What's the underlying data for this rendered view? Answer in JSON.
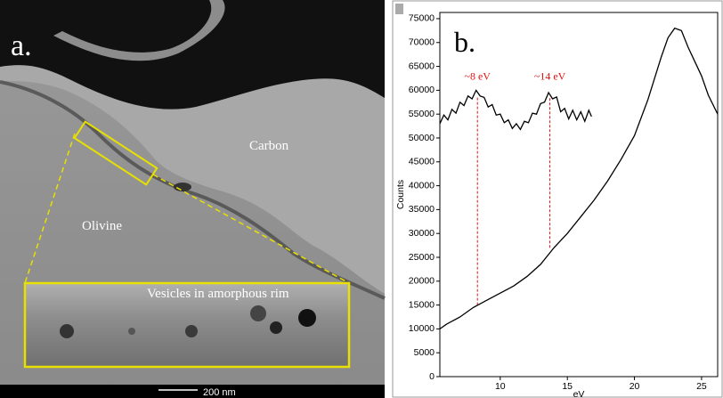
{
  "image_panel": {
    "label": "a.",
    "regions": [
      "Carbon",
      "Olivine"
    ],
    "inset_caption": "Vesicles in amorphous rim",
    "scale_bar": "200 nm"
  },
  "chart_data": {
    "type": "line",
    "panel_label": "b.",
    "x_label": "eV",
    "y_label": "Counts",
    "xlim": [
      5.5,
      26.2
    ],
    "ylim": [
      0,
      76300
    ],
    "xticks": [
      10,
      15,
      20,
      25
    ],
    "yticks": [
      0,
      5000,
      10000,
      15000,
      20000,
      25000,
      30000,
      35000,
      40000,
      45000,
      50000,
      55000,
      60000,
      65000,
      70000,
      75000
    ],
    "series": [
      {
        "color": "#000000",
        "x": [
          5.5,
          6,
          7,
          8,
          9,
          10,
          11,
          12,
          13,
          14,
          15,
          16,
          17,
          18,
          19,
          20,
          21,
          22,
          22.5,
          23,
          23.5,
          24,
          24.5,
          25,
          25.5,
          26.2
        ],
        "values": [
          10000,
          11000,
          12500,
          14500,
          16000,
          17500,
          19000,
          21000,
          23500,
          27000,
          30000,
          33500,
          37000,
          41000,
          45500,
          50500,
          58000,
          67000,
          71000,
          73000,
          72500,
          69000,
          66000,
          63000,
          59000,
          55000
        ]
      },
      {
        "color": "#000000",
        "x": [
          5.5,
          5.8,
          6.1,
          6.4,
          6.7,
          7,
          7.3,
          7.6,
          7.9,
          8.2,
          8.5,
          8.8,
          9.1,
          9.4,
          9.7,
          10,
          10.3,
          10.6,
          10.9,
          11.2,
          11.5,
          11.8,
          12.1,
          12.4,
          12.7,
          13,
          13.3,
          13.6,
          13.9,
          14.2,
          14.5,
          14.8,
          15.1,
          15.4,
          15.7,
          16,
          16.3,
          16.6,
          16.8
        ],
        "values": [
          53000,
          54800,
          53800,
          56000,
          55200,
          57500,
          56800,
          58800,
          58200,
          60000,
          58800,
          58500,
          56500,
          57000,
          54800,
          55000,
          53200,
          53800,
          52000,
          53000,
          51800,
          53500,
          53200,
          55200,
          55000,
          57200,
          57500,
          59500,
          58200,
          58600,
          55500,
          56200,
          54000,
          55800,
          53800,
          55500,
          53500,
          55800,
          54500
        ]
      }
    ],
    "reference_lines": [
      {
        "x": 8.3,
        "from": 15000,
        "to": 58500,
        "label": "~8 eV"
      },
      {
        "x": 13.7,
        "from": 27000,
        "to": 58500,
        "label": "~14 eV"
      }
    ],
    "reference_color": "#e01010"
  }
}
